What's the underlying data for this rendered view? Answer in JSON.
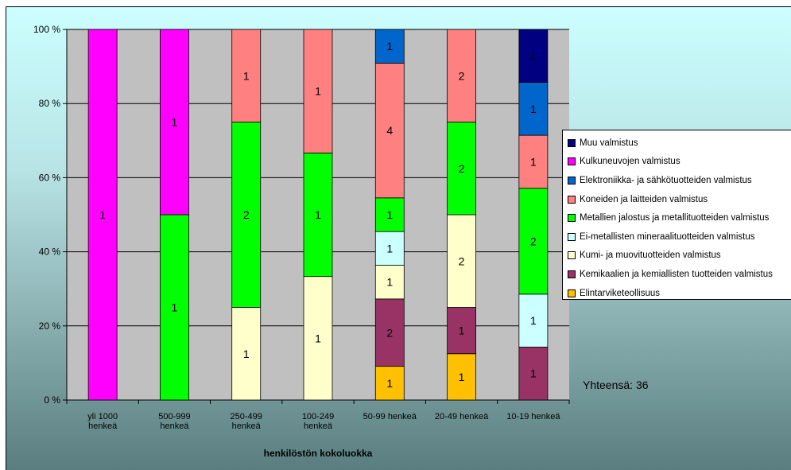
{
  "chart_data": {
    "type": "bar",
    "stacked": "percent",
    "xlabel": "henkilöstön kokoluokka",
    "ylabel": "",
    "ylim": [
      0,
      100
    ],
    "yticks": [
      "0 %",
      "20 %",
      "40 %",
      "60 %",
      "80 %",
      "100 %"
    ],
    "grid": true,
    "legend_position": "right",
    "categories": [
      [
        "yli 1000",
        "henkeä"
      ],
      [
        "500-999",
        "henkeä"
      ],
      [
        "250-499",
        "henkeä"
      ],
      [
        "100-249",
        "henkeä"
      ],
      [
        "50-99 henkeä"
      ],
      [
        "20-49 henkeä"
      ],
      [
        "10-19 henkeä"
      ]
    ],
    "series": [
      {
        "name": "Elintarviketeollisuus",
        "color": "#ffc000",
        "values": [
          0,
          0,
          0,
          0,
          1,
          1,
          0
        ]
      },
      {
        "name": "Kemikaalien ja kemiallisten tuotteiden valmistus",
        "color": "#993366",
        "values": [
          0,
          0,
          0,
          0,
          2,
          1,
          1
        ]
      },
      {
        "name": "Kumi- ja muovituotteiden valmistus",
        "color": "#ffffcc",
        "values": [
          0,
          0,
          1,
          1,
          1,
          2,
          0
        ]
      },
      {
        "name": "Ei-metallisten mineraalituotteiden valmistus",
        "color": "#ccffff",
        "values": [
          0,
          0,
          0,
          0,
          1,
          0,
          1
        ]
      },
      {
        "name": "Metallien jalostus ja metallituotteiden valmistus",
        "color": "#00ff00",
        "values": [
          0,
          1,
          2,
          1,
          1,
          2,
          2
        ]
      },
      {
        "name": "Koneiden ja laitteiden valmistus",
        "color": "#ff8080",
        "values": [
          0,
          0,
          1,
          1,
          4,
          2,
          1
        ]
      },
      {
        "name": "Elektroniikka- ja sähkötuotteiden valmistus",
        "color": "#0066cc",
        "values": [
          0,
          0,
          0,
          0,
          1,
          0,
          1
        ]
      },
      {
        "name": "Kulkuneuvojen valmistus",
        "color": "#ff00ff",
        "values": [
          1,
          1,
          0,
          0,
          0,
          0,
          0
        ]
      },
      {
        "name": "Muu valmistus",
        "color": "#000080",
        "values": [
          0,
          0,
          0,
          0,
          0,
          0,
          1
        ]
      }
    ],
    "total_label": "Yhteensä: 36"
  }
}
